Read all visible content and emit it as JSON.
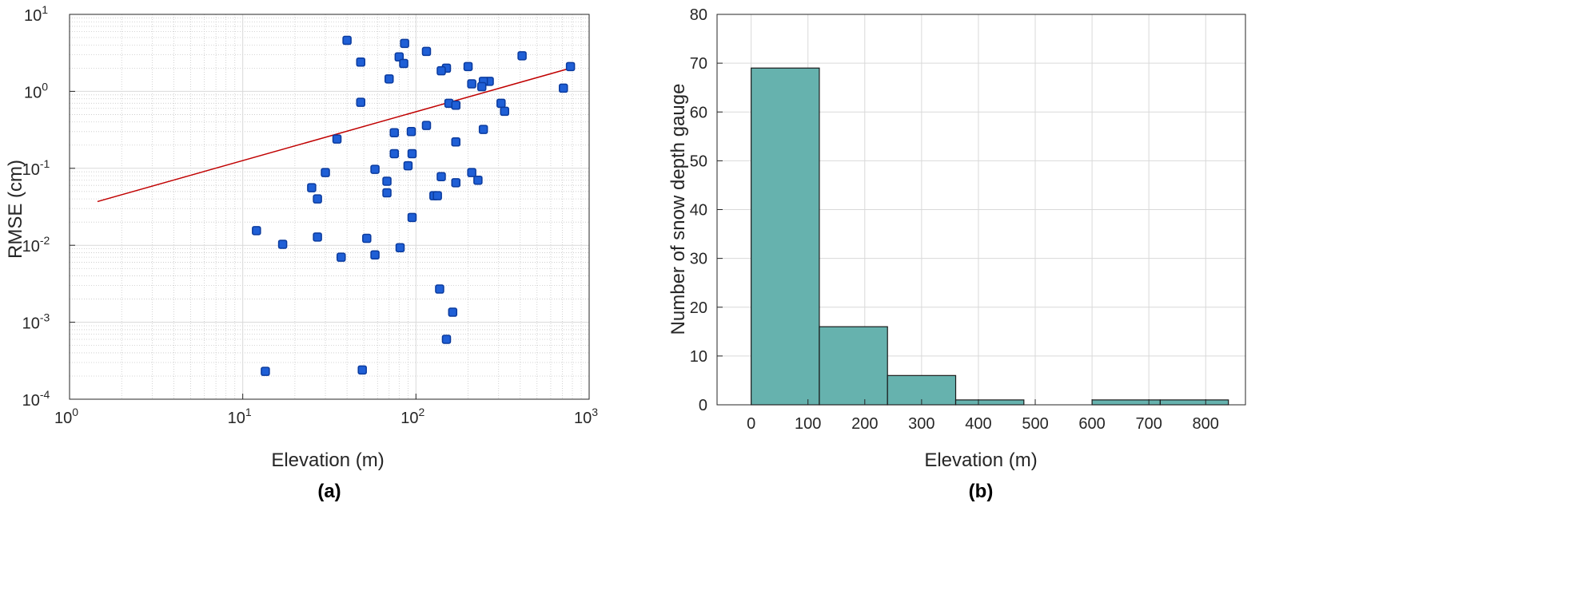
{
  "panels": {
    "a": "(a)",
    "b": "(b)"
  },
  "colors": {
    "points": "#1f5fd6",
    "fit_line": "#c00000",
    "bars": "#66b2ae",
    "bar_edge": "#1a1a1a",
    "grid": "#d9d9d9"
  },
  "chart_data": [
    {
      "type": "scatter",
      "panel": "(a)",
      "xlabel": "Elevation (m)",
      "ylabel": "RMSE (cm)",
      "xscale": "log",
      "yscale": "log",
      "xlim": [
        1,
        1000
      ],
      "ylim": [
        0.0001,
        10
      ],
      "grid": "on (major and minor)",
      "x_ticks": [
        {
          "v": 1,
          "m": "10",
          "e": "0"
        },
        {
          "v": 10,
          "m": "10",
          "e": "1"
        },
        {
          "v": 100,
          "m": "10",
          "e": "2"
        },
        {
          "v": 1000,
          "m": "10",
          "e": "3"
        }
      ],
      "y_ticks": [
        {
          "v": 0.0001,
          "m": "10",
          "e": "-4"
        },
        {
          "v": 0.001,
          "m": "10",
          "e": "-3"
        },
        {
          "v": 0.01,
          "m": "10",
          "e": "-2"
        },
        {
          "v": 0.1,
          "m": "10",
          "e": "-1"
        },
        {
          "v": 1,
          "m": "10",
          "e": "0"
        },
        {
          "v": 10,
          "m": "10",
          "e": "1"
        }
      ],
      "points": [
        {
          "x": 40,
          "y": 4.6
        },
        {
          "x": 86,
          "y": 4.2
        },
        {
          "x": 115,
          "y": 3.3
        },
        {
          "x": 80,
          "y": 2.8
        },
        {
          "x": 410,
          "y": 2.9
        },
        {
          "x": 48,
          "y": 2.4
        },
        {
          "x": 85,
          "y": 2.3
        },
        {
          "x": 200,
          "y": 2.1
        },
        {
          "x": 150,
          "y": 2.0
        },
        {
          "x": 780,
          "y": 2.1
        },
        {
          "x": 140,
          "y": 1.85
        },
        {
          "x": 70,
          "y": 1.45
        },
        {
          "x": 265,
          "y": 1.35
        },
        {
          "x": 245,
          "y": 1.35
        },
        {
          "x": 210,
          "y": 1.25
        },
        {
          "x": 240,
          "y": 1.15
        },
        {
          "x": 710,
          "y": 1.1
        },
        {
          "x": 48,
          "y": 0.72
        },
        {
          "x": 155,
          "y": 0.7
        },
        {
          "x": 170,
          "y": 0.66
        },
        {
          "x": 310,
          "y": 0.7
        },
        {
          "x": 325,
          "y": 0.55
        },
        {
          "x": 115,
          "y": 0.36
        },
        {
          "x": 245,
          "y": 0.32
        },
        {
          "x": 75,
          "y": 0.29
        },
        {
          "x": 94,
          "y": 0.3
        },
        {
          "x": 35,
          "y": 0.24
        },
        {
          "x": 170,
          "y": 0.22
        },
        {
          "x": 75,
          "y": 0.155
        },
        {
          "x": 95,
          "y": 0.155
        },
        {
          "x": 90,
          "y": 0.108
        },
        {
          "x": 58,
          "y": 0.097
        },
        {
          "x": 30,
          "y": 0.088
        },
        {
          "x": 210,
          "y": 0.088
        },
        {
          "x": 140,
          "y": 0.078
        },
        {
          "x": 228,
          "y": 0.07
        },
        {
          "x": 68,
          "y": 0.068
        },
        {
          "x": 170,
          "y": 0.065
        },
        {
          "x": 25,
          "y": 0.056
        },
        {
          "x": 68,
          "y": 0.048
        },
        {
          "x": 127,
          "y": 0.044
        },
        {
          "x": 133,
          "y": 0.044
        },
        {
          "x": 27,
          "y": 0.04
        },
        {
          "x": 95,
          "y": 0.023
        },
        {
          "x": 12,
          "y": 0.0155
        },
        {
          "x": 27,
          "y": 0.0128
        },
        {
          "x": 52,
          "y": 0.0123
        },
        {
          "x": 17,
          "y": 0.0103
        },
        {
          "x": 81,
          "y": 0.0093
        },
        {
          "x": 58,
          "y": 0.0075
        },
        {
          "x": 37,
          "y": 0.007
        },
        {
          "x": 137,
          "y": 0.0027
        },
        {
          "x": 163,
          "y": 0.00135
        },
        {
          "x": 150,
          "y": 0.0006
        },
        {
          "x": 13.5,
          "y": 0.00023
        },
        {
          "x": 49,
          "y": 0.00024
        }
      ],
      "fit_line": {
        "x": [
          1.45,
          780
        ],
        "y": [
          0.037,
          2.0
        ]
      }
    },
    {
      "type": "bar",
      "panel": "(b)",
      "xlabel": "Elevation (m)",
      "ylabel": "Number of snow depth gauge",
      "xlim": [
        -60,
        870
      ],
      "ylim": [
        0,
        80
      ],
      "grid": "on",
      "x_ticks": [
        0,
        100,
        200,
        300,
        400,
        500,
        600,
        700,
        800
      ],
      "y_ticks": [
        0,
        10,
        20,
        30,
        40,
        50,
        60,
        70,
        80
      ],
      "bin_edges": [
        0,
        120,
        240,
        360,
        480,
        600,
        720,
        840
      ],
      "values": [
        69,
        16,
        6,
        1,
        0,
        1,
        1
      ]
    }
  ]
}
